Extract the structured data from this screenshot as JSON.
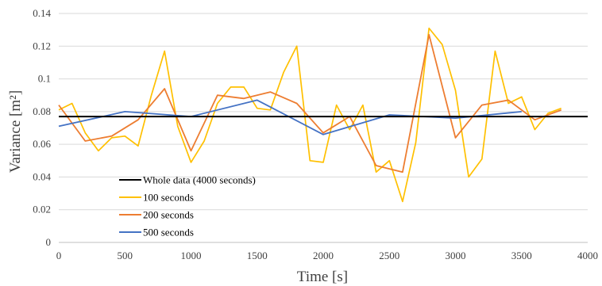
{
  "chart_data": {
    "type": "line",
    "title": "",
    "xlabel": "Time [s]",
    "ylabel": "Variance [m²]",
    "xlim": [
      0,
      4000
    ],
    "ylim": [
      0,
      0.14
    ],
    "x_ticks": [
      0,
      500,
      1000,
      1500,
      2000,
      2500,
      3000,
      3500,
      4000
    ],
    "y_ticks": [
      0,
      0.02,
      0.04,
      0.06,
      0.08,
      0.1,
      0.12,
      0.14
    ],
    "x_tick_labels": [
      "0",
      "500",
      "1000",
      "1500",
      "2000",
      "2500",
      "3000",
      "3500",
      "4000"
    ],
    "y_tick_labels": [
      "0",
      "0.02",
      "0.04",
      "0.06",
      "0.08",
      "0.1",
      "0.12",
      "0.14"
    ],
    "grid": "horizontal",
    "legend_position": "lower-left",
    "series": [
      {
        "name": "Whole data (4000 seconds)",
        "color": "#000000",
        "x": [
          0,
          4000
        ],
        "y": [
          0.077,
          0.077
        ]
      },
      {
        "name": "100 seconds",
        "color": "#FFC000",
        "x": [
          0,
          100,
          200,
          300,
          400,
          500,
          600,
          700,
          800,
          900,
          1000,
          1100,
          1200,
          1300,
          1400,
          1500,
          1600,
          1700,
          1800,
          1900,
          2000,
          2100,
          2200,
          2300,
          2400,
          2500,
          2600,
          2700,
          2800,
          2900,
          3000,
          3100,
          3200,
          3300,
          3400,
          3500,
          3600,
          3700,
          3800
        ],
        "y": [
          0.081,
          0.085,
          0.067,
          0.056,
          0.064,
          0.065,
          0.059,
          0.09,
          0.117,
          0.071,
          0.049,
          0.062,
          0.085,
          0.095,
          0.095,
          0.082,
          0.081,
          0.104,
          0.12,
          0.05,
          0.049,
          0.084,
          0.069,
          0.084,
          0.043,
          0.05,
          0.025,
          0.061,
          0.131,
          0.121,
          0.093,
          0.04,
          0.051,
          0.117,
          0.085,
          0.089,
          0.069,
          0.079,
          0.082
        ]
      },
      {
        "name": "200 seconds",
        "color": "#ED7D31",
        "x": [
          0,
          200,
          400,
          600,
          800,
          1000,
          1200,
          1400,
          1600,
          1800,
          2000,
          2200,
          2400,
          2600,
          2800,
          3000,
          3200,
          3400,
          3600,
          3800
        ],
        "y": [
          0.084,
          0.062,
          0.065,
          0.075,
          0.094,
          0.056,
          0.09,
          0.088,
          0.092,
          0.085,
          0.067,
          0.077,
          0.047,
          0.043,
          0.127,
          0.064,
          0.084,
          0.087,
          0.075,
          0.081
        ]
      },
      {
        "name": "500 seconds",
        "color": "#4472C4",
        "x": [
          0,
          500,
          1000,
          1500,
          2000,
          2500,
          3000,
          3500
        ],
        "y": [
          0.071,
          0.08,
          0.077,
          0.087,
          0.066,
          0.078,
          0.076,
          0.08
        ]
      }
    ]
  }
}
